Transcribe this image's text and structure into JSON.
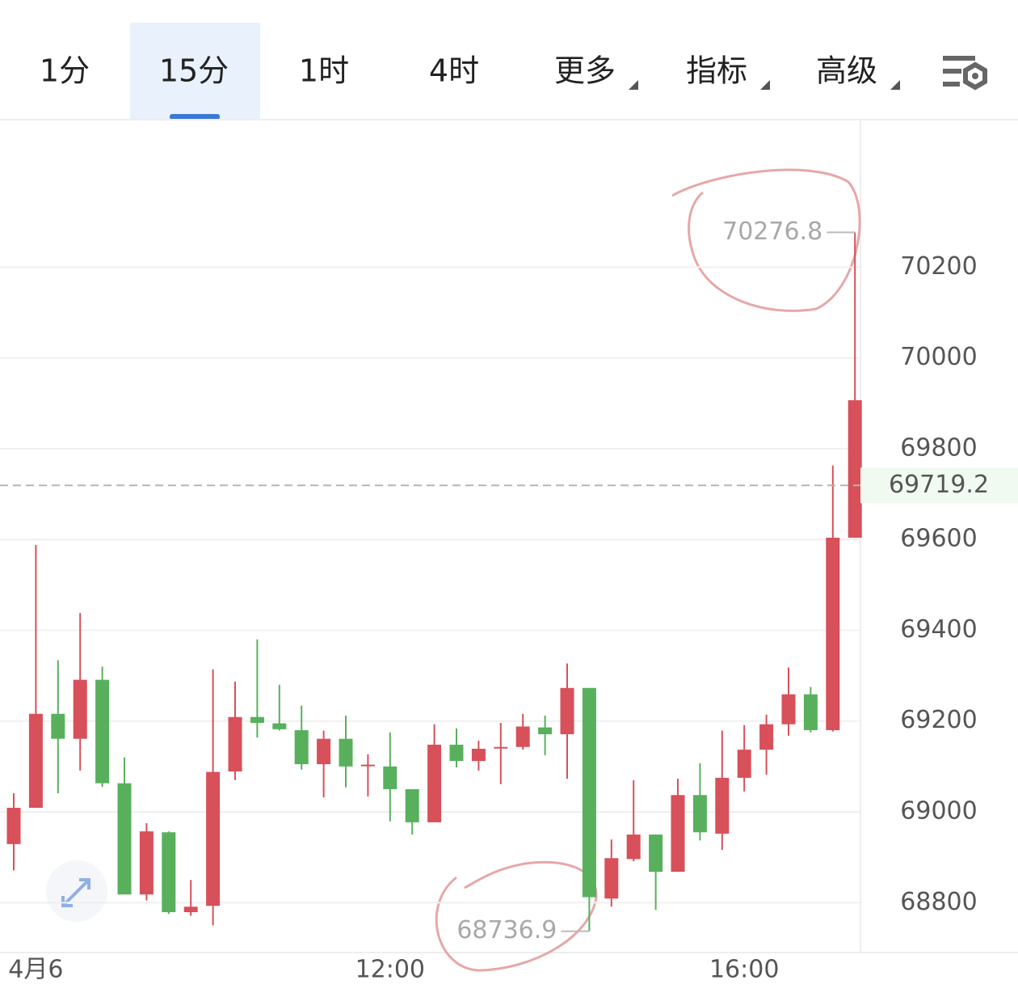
{
  "toolbar": {
    "tabs": [
      "1分",
      "15分",
      "1时",
      "4时",
      "更多",
      "指标",
      "高级"
    ],
    "selected": 1
  },
  "chart_data": {
    "type": "candlestick",
    "categories": [
      null,
      "4月6",
      null,
      null,
      null,
      null,
      null,
      null,
      null,
      null,
      null,
      null,
      null,
      null,
      null,
      null,
      null,
      "12:00",
      null,
      null,
      null,
      null,
      null,
      null,
      null,
      null,
      null,
      null,
      null,
      null,
      null,
      null,
      null,
      "16:00",
      null,
      null,
      null,
      null,
      null
    ],
    "open": [
      68929,
      69009,
      69216,
      69161,
      69291,
      69063,
      68818,
      68955,
      68779,
      68793,
      69089,
      69209,
      69195,
      69180,
      69105,
      69161,
      69103,
      69100,
      69050,
      68977,
      69148,
      69112,
      69141,
      69143,
      69186,
      69171,
      69273,
      68809,
      68896,
      68950,
      68868,
      69037,
      68952,
      69075,
      69137,
      69193,
      69259,
      69180,
      69604
    ],
    "high": [
      69041,
      69588,
      69334,
      69438,
      69320,
      69120,
      68975,
      68957,
      68850,
      69314,
      69287,
      69380,
      69280,
      69234,
      69179,
      69212,
      69127,
      69175,
      69050,
      69193,
      69184,
      69157,
      69196,
      69216,
      69212,
      69327,
      69273,
      68939,
      69070,
      68950,
      69073,
      69107,
      69179,
      69191,
      69214,
      69318,
      69275,
      69763,
      70276.8
    ],
    "low": [
      68871,
      69009,
      69041,
      69091,
      69055,
      68818,
      68805,
      68775,
      68771,
      68750,
      69070,
      69164,
      69179,
      69093,
      69032,
      69054,
      69034,
      68979,
      68950,
      68977,
      69098,
      69091,
      69061,
      69137,
      69125,
      69073,
      68736.9,
      68791,
      68891,
      68784,
      68868,
      68937,
      68916,
      69045,
      69082,
      69168,
      69175,
      69177,
      69604
    ],
    "close": [
      69009,
      69216,
      69161,
      69291,
      69063,
      68818,
      68957,
      68779,
      68791,
      69088,
      69209,
      69196,
      69182,
      69105,
      69161,
      69100,
      69104,
      69050,
      68977,
      69148,
      69112,
      69139,
      69143,
      69188,
      69171,
      69273,
      68812,
      68898,
      68950,
      68868,
      69037,
      68955,
      69075,
      69137,
      69193,
      69259,
      69180,
      69604,
      69907
    ],
    "up_color": "#d7505a",
    "down_color": "#58b05d",
    "ylim": [
      68690,
      70525
    ],
    "yticks": [
      68800,
      69000,
      69200,
      69400,
      69600,
      69800,
      70000,
      70200
    ],
    "grid": true,
    "last_price": 69719.2,
    "max_index": 38,
    "min_index": 26
  }
}
